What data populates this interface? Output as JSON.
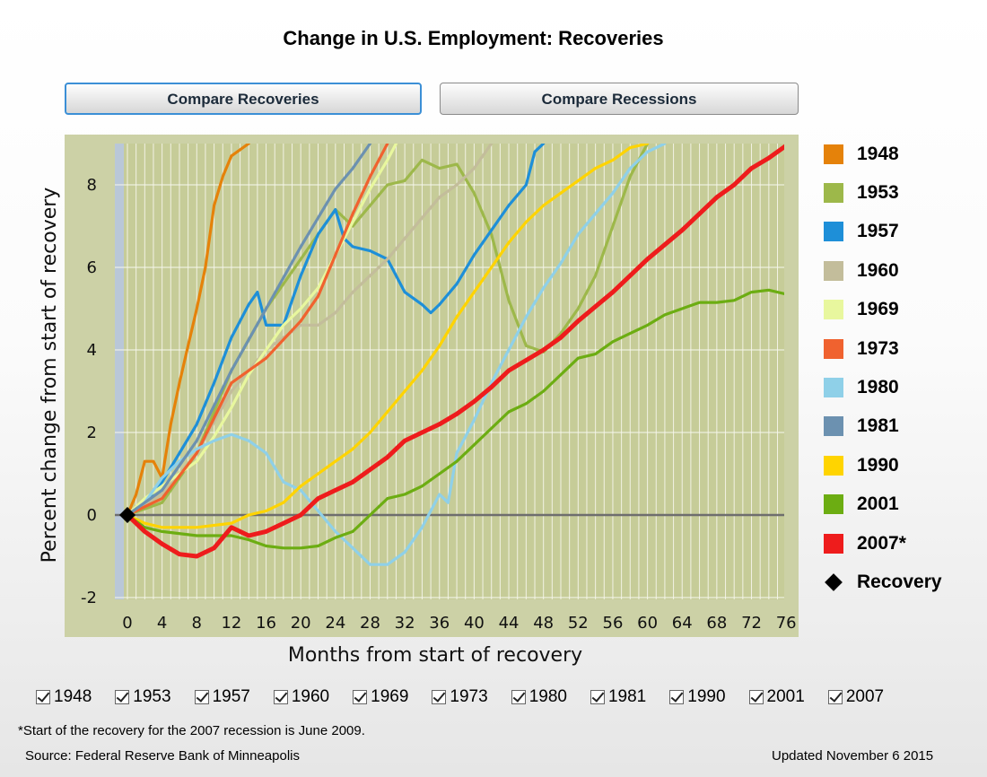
{
  "page": {
    "title": "Change in U.S. Employment: Recoveries",
    "tabs": [
      {
        "label": "Compare Recoveries",
        "active": true
      },
      {
        "label": "Compare Recessions",
        "active": false
      }
    ],
    "footnote": "*Start of the recovery for the 2007 recession is June 2009.",
    "source": "Source: Federal Reserve Bank of Minneapolis",
    "updated": "Updated November 6 2015"
  },
  "legend": [
    {
      "label": "1948",
      "color": "#e5820a"
    },
    {
      "label": "1953",
      "color": "#9db84a"
    },
    {
      "label": "1957",
      "color": "#1e8fd8"
    },
    {
      "label": "1960",
      "color": "#c3bd9b"
    },
    {
      "label": "1969",
      "color": "#e8f79e"
    },
    {
      "label": "1973",
      "color": "#f0622f"
    },
    {
      "label": "1980",
      "color": "#8fd0e8"
    },
    {
      "label": "1981",
      "color": "#6c91b0"
    },
    {
      "label": "1990",
      "color": "#ffd400"
    },
    {
      "label": "2001",
      "color": "#6cad12"
    },
    {
      "label": "2007*",
      "color": "#ee1c1c"
    },
    {
      "label": "Recovery",
      "color": "#000000",
      "marker": "diamond"
    }
  ],
  "checkboxes": [
    "1948",
    "1953",
    "1957",
    "1960",
    "1969",
    "1973",
    "1980",
    "1981",
    "1990",
    "2001",
    "2007"
  ],
  "chart_data": {
    "type": "line",
    "title": "Change in U.S. Employment: Recoveries",
    "xlabel": "Months from start of recovery",
    "ylabel": "Percent change from start of recovery",
    "xlim": [
      -1,
      76
    ],
    "ylim": [
      -2.1,
      9.0
    ],
    "xticks": [
      0,
      4,
      8,
      12,
      16,
      20,
      24,
      28,
      32,
      36,
      40,
      44,
      48,
      52,
      56,
      60,
      64,
      68,
      72,
      76
    ],
    "yticks": [
      -2,
      0,
      2,
      4,
      6,
      8
    ],
    "grid": true,
    "legend_position": "right",
    "zero_line": true,
    "recovery_marker": {
      "x": 0,
      "y": 0,
      "label": "Recovery"
    },
    "series": [
      {
        "name": "1948",
        "color": "#e5820a",
        "points": [
          [
            0,
            0
          ],
          [
            1,
            0.5
          ],
          [
            2,
            1.3
          ],
          [
            3,
            1.3
          ],
          [
            4,
            0.9
          ],
          [
            5,
            2.2
          ],
          [
            6,
            3.2
          ],
          [
            7,
            4.1
          ],
          [
            8,
            5.0
          ],
          [
            9,
            6.0
          ],
          [
            10,
            7.5
          ],
          [
            11,
            8.2
          ],
          [
            12,
            8.7
          ],
          [
            14,
            9.0
          ]
        ]
      },
      {
        "name": "1953",
        "color": "#9db84a",
        "points": [
          [
            0,
            0
          ],
          [
            4,
            0.3
          ],
          [
            8,
            1.5
          ],
          [
            12,
            3.5
          ],
          [
            16,
            5.0
          ],
          [
            20,
            6.2
          ],
          [
            24,
            7.4
          ],
          [
            26,
            7.0
          ],
          [
            28,
            7.5
          ],
          [
            30,
            8.0
          ],
          [
            32,
            8.1
          ],
          [
            34,
            8.6
          ],
          [
            36,
            8.4
          ],
          [
            38,
            8.5
          ],
          [
            40,
            7.8
          ],
          [
            42,
            6.8
          ],
          [
            44,
            5.2
          ],
          [
            46,
            4.1
          ],
          [
            48,
            3.95
          ],
          [
            50,
            4.4
          ],
          [
            52,
            5.0
          ],
          [
            54,
            5.8
          ],
          [
            56,
            7.0
          ],
          [
            58,
            8.2
          ],
          [
            60,
            9.0
          ]
        ]
      },
      {
        "name": "1957",
        "color": "#1e8fd8",
        "points": [
          [
            0,
            0
          ],
          [
            2,
            0.3
          ],
          [
            4,
            0.8
          ],
          [
            6,
            1.5
          ],
          [
            8,
            2.2
          ],
          [
            10,
            3.2
          ],
          [
            12,
            4.3
          ],
          [
            14,
            5.1
          ],
          [
            15,
            5.4
          ],
          [
            16,
            4.6
          ],
          [
            18,
            4.6
          ],
          [
            20,
            5.8
          ],
          [
            22,
            6.8
          ],
          [
            24,
            7.4
          ],
          [
            25,
            6.7
          ],
          [
            26,
            6.5
          ],
          [
            28,
            6.4
          ],
          [
            30,
            6.2
          ],
          [
            32,
            5.4
          ],
          [
            34,
            5.1
          ],
          [
            35,
            4.9
          ],
          [
            36,
            5.1
          ],
          [
            38,
            5.6
          ],
          [
            40,
            6.3
          ],
          [
            42,
            6.9
          ],
          [
            44,
            7.5
          ],
          [
            46,
            8.0
          ],
          [
            47,
            8.8
          ],
          [
            48,
            9.0
          ]
        ]
      },
      {
        "name": "1960",
        "color": "#c3bd9b",
        "points": [
          [
            0,
            0
          ],
          [
            4,
            0.5
          ],
          [
            8,
            1.5
          ],
          [
            12,
            3.0
          ],
          [
            16,
            4.0
          ],
          [
            20,
            4.6
          ],
          [
            22,
            4.6
          ],
          [
            24,
            4.9
          ],
          [
            26,
            5.4
          ],
          [
            28,
            5.8
          ],
          [
            30,
            6.2
          ],
          [
            32,
            6.7
          ],
          [
            34,
            7.2
          ],
          [
            36,
            7.7
          ],
          [
            38,
            8.0
          ],
          [
            40,
            8.4
          ],
          [
            42,
            9.0
          ]
        ]
      },
      {
        "name": "1969",
        "color": "#e8f79e",
        "points": [
          [
            0,
            0
          ],
          [
            2,
            0.4
          ],
          [
            4,
            0.7
          ],
          [
            6,
            1.0
          ],
          [
            8,
            1.3
          ],
          [
            10,
            1.9
          ],
          [
            12,
            2.6
          ],
          [
            14,
            3.4
          ],
          [
            16,
            4.0
          ],
          [
            18,
            4.6
          ],
          [
            20,
            5.0
          ],
          [
            22,
            5.5
          ],
          [
            24,
            6.3
          ],
          [
            26,
            7.1
          ],
          [
            28,
            7.9
          ],
          [
            30,
            8.6
          ],
          [
            31,
            9.0
          ]
        ]
      },
      {
        "name": "1973",
        "color": "#f0622f",
        "points": [
          [
            0,
            0
          ],
          [
            4,
            0.4
          ],
          [
            8,
            1.5
          ],
          [
            12,
            3.2
          ],
          [
            16,
            3.8
          ],
          [
            20,
            4.7
          ],
          [
            22,
            5.3
          ],
          [
            24,
            6.3
          ],
          [
            26,
            7.3
          ],
          [
            28,
            8.2
          ],
          [
            30,
            9.0
          ]
        ]
      },
      {
        "name": "1980",
        "color": "#8fd0e8",
        "points": [
          [
            0,
            0
          ],
          [
            2,
            0.3
          ],
          [
            4,
            0.9
          ],
          [
            6,
            1.3
          ],
          [
            8,
            1.6
          ],
          [
            10,
            1.8
          ],
          [
            12,
            1.95
          ],
          [
            14,
            1.8
          ],
          [
            16,
            1.5
          ],
          [
            18,
            0.8
          ],
          [
            20,
            0.6
          ],
          [
            22,
            0.1
          ],
          [
            24,
            -0.4
          ],
          [
            26,
            -0.8
          ],
          [
            28,
            -1.2
          ],
          [
            30,
            -1.2
          ],
          [
            32,
            -0.9
          ],
          [
            34,
            -0.3
          ],
          [
            36,
            0.5
          ],
          [
            37,
            0.3
          ],
          [
            38,
            1.5
          ],
          [
            40,
            2.3
          ],
          [
            42,
            3.2
          ],
          [
            44,
            4.0
          ],
          [
            46,
            4.8
          ],
          [
            48,
            5.5
          ],
          [
            50,
            6.1
          ],
          [
            52,
            6.8
          ],
          [
            54,
            7.3
          ],
          [
            56,
            7.8
          ],
          [
            58,
            8.4
          ],
          [
            60,
            8.8
          ],
          [
            62,
            9.0
          ]
        ]
      },
      {
        "name": "1981",
        "color": "#6c91b0",
        "points": [
          [
            0,
            0
          ],
          [
            4,
            0.6
          ],
          [
            8,
            1.8
          ],
          [
            12,
            3.5
          ],
          [
            16,
            5.0
          ],
          [
            20,
            6.5
          ],
          [
            22,
            7.2
          ],
          [
            24,
            7.9
          ],
          [
            26,
            8.4
          ],
          [
            28,
            9.0
          ]
        ]
      },
      {
        "name": "1990",
        "color": "#ffd400",
        "points": [
          [
            0,
            0
          ],
          [
            2,
            -0.2
          ],
          [
            4,
            -0.3
          ],
          [
            8,
            -0.3
          ],
          [
            12,
            -0.2
          ],
          [
            14,
            0.0
          ],
          [
            16,
            0.1
          ],
          [
            18,
            0.3
          ],
          [
            20,
            0.7
          ],
          [
            22,
            1.0
          ],
          [
            24,
            1.3
          ],
          [
            26,
            1.6
          ],
          [
            28,
            2.0
          ],
          [
            30,
            2.5
          ],
          [
            32,
            3.0
          ],
          [
            34,
            3.5
          ],
          [
            36,
            4.1
          ],
          [
            38,
            4.8
          ],
          [
            40,
            5.4
          ],
          [
            42,
            6.0
          ],
          [
            44,
            6.6
          ],
          [
            46,
            7.1
          ],
          [
            48,
            7.5
          ],
          [
            50,
            7.8
          ],
          [
            52,
            8.1
          ],
          [
            54,
            8.4
          ],
          [
            56,
            8.6
          ],
          [
            58,
            8.9
          ],
          [
            60,
            9.0
          ]
        ]
      },
      {
        "name": "2001",
        "color": "#6cad12",
        "points": [
          [
            0,
            0
          ],
          [
            2,
            -0.3
          ],
          [
            4,
            -0.4
          ],
          [
            8,
            -0.5
          ],
          [
            12,
            -0.5
          ],
          [
            14,
            -0.6
          ],
          [
            16,
            -0.75
          ],
          [
            18,
            -0.8
          ],
          [
            20,
            -0.8
          ],
          [
            22,
            -0.75
          ],
          [
            24,
            -0.55
          ],
          [
            26,
            -0.4
          ],
          [
            28,
            0.0
          ],
          [
            30,
            0.4
          ],
          [
            32,
            0.5
          ],
          [
            34,
            0.7
          ],
          [
            36,
            1.0
          ],
          [
            38,
            1.3
          ],
          [
            40,
            1.7
          ],
          [
            42,
            2.1
          ],
          [
            44,
            2.5
          ],
          [
            46,
            2.7
          ],
          [
            48,
            3.0
          ],
          [
            50,
            3.4
          ],
          [
            52,
            3.8
          ],
          [
            54,
            3.9
          ],
          [
            56,
            4.2
          ],
          [
            58,
            4.4
          ],
          [
            60,
            4.6
          ],
          [
            62,
            4.85
          ],
          [
            64,
            5.0
          ],
          [
            66,
            5.15
          ],
          [
            68,
            5.15
          ],
          [
            70,
            5.2
          ],
          [
            72,
            5.4
          ],
          [
            74,
            5.45
          ],
          [
            76,
            5.35
          ]
        ]
      },
      {
        "name": "2007*",
        "color": "#ee1c1c",
        "points": [
          [
            0,
            0
          ],
          [
            2,
            -0.4
          ],
          [
            4,
            -0.7
          ],
          [
            6,
            -0.95
          ],
          [
            8,
            -1.0
          ],
          [
            10,
            -0.8
          ],
          [
            12,
            -0.3
          ],
          [
            14,
            -0.5
          ],
          [
            16,
            -0.4
          ],
          [
            18,
            -0.2
          ],
          [
            20,
            0.0
          ],
          [
            22,
            0.4
          ],
          [
            24,
            0.6
          ],
          [
            26,
            0.8
          ],
          [
            28,
            1.1
          ],
          [
            30,
            1.4
          ],
          [
            32,
            1.8
          ],
          [
            34,
            2.0
          ],
          [
            36,
            2.2
          ],
          [
            38,
            2.45
          ],
          [
            40,
            2.75
          ],
          [
            42,
            3.1
          ],
          [
            44,
            3.5
          ],
          [
            46,
            3.75
          ],
          [
            48,
            4.0
          ],
          [
            50,
            4.3
          ],
          [
            52,
            4.7
          ],
          [
            54,
            5.05
          ],
          [
            56,
            5.4
          ],
          [
            58,
            5.8
          ],
          [
            60,
            6.2
          ],
          [
            62,
            6.55
          ],
          [
            64,
            6.9
          ],
          [
            66,
            7.3
          ],
          [
            68,
            7.7
          ],
          [
            70,
            8.0
          ],
          [
            72,
            8.4
          ],
          [
            74,
            8.65
          ],
          [
            76,
            8.95
          ]
        ]
      }
    ]
  }
}
